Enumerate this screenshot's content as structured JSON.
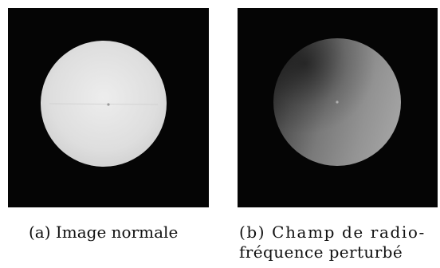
{
  "figures": [
    {
      "caption": "(a) Image normale"
    },
    {
      "caption_line1": "(b) Champ de radio-",
      "caption_line2": "fréquence perturbé"
    }
  ],
  "colors": {
    "background": "#ffffff",
    "panel_background": "#050505",
    "sphere_normal_center": "#e6e6e6",
    "sphere_normal_edge": "#d2d2d2",
    "sphere_perturbed_light": "#a0a0a0",
    "sphere_perturbed_dark": "#3c3c3c"
  }
}
